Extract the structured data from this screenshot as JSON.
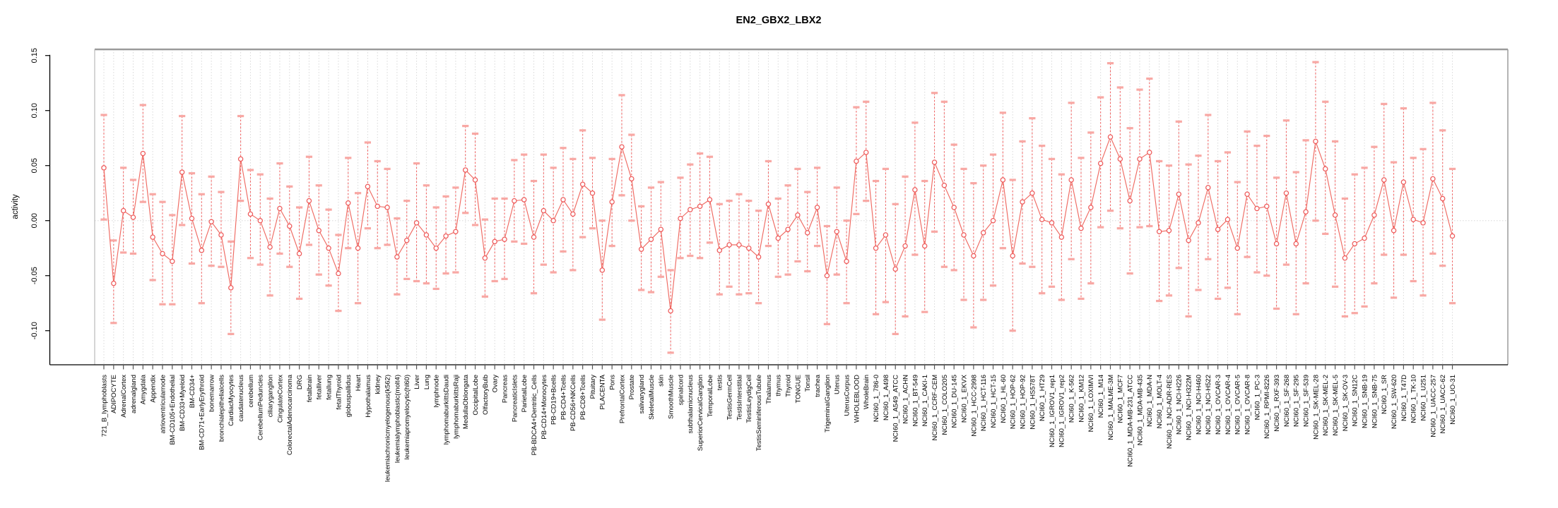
{
  "title": "EN2_GBX2_LBX2",
  "ylabel": "activity",
  "colors": {
    "point": "#ee5a5a",
    "line": "#ef6a62",
    "error_line": "#f25f5f",
    "cap": "#f8a8a4",
    "grid": "#d8d8d8",
    "zero_line": "#d8d8d8",
    "axis": "#000000",
    "box": "#9b9b9b",
    "text": "#000000"
  },
  "chart_data": {
    "type": "scatter",
    "subtype": "error-bar-plot",
    "title": "EN2_GBX2_LBX2",
    "xlabel": "",
    "ylabel": "activity",
    "ylim": [
      -0.132,
      0.156
    ],
    "yticks": [
      0.15,
      0.1,
      0.05,
      0.0,
      -0.05,
      -0.1
    ],
    "ytick_labels": [
      "0.15",
      "0.10",
      "0.05",
      "0.00",
      "-0.05",
      "-0.10"
    ],
    "grid": "dotted vertical line per category; dotted horizontal line at 0",
    "legend_position": "none",
    "categories": [
      "721_B_lymphoblasts",
      "ADIPOCYTE",
      "AdrenalCortex",
      "adrenalgland",
      "Amygdala",
      "Appendix",
      "atrioventricularnode",
      "BM-CD105+Endothelial",
      "BM-CD33+Myeloid",
      "BM-CD34+",
      "BM-CD71+EarlyErythroid",
      "bonemarrow",
      "bronchialepithelialcells",
      "CardiacMyocytes",
      "caudatenucleus",
      "cerebellum",
      "CerebellumPeduncles",
      "ciliaryganglion",
      "CingulateCortex",
      "ColorectalAdenocarcinoma",
      "DRG",
      "fetalbrain",
      "fetalliver",
      "fetallung",
      "fetalThyroid",
      "globuspallidus",
      "Heart",
      "Hypothalamus",
      "kidney",
      "leukemiachronicmyelogenous(k562)",
      "leukemialymphoblastic(molt4)",
      "leukemiapromyelocytic(hl60)",
      "Liver",
      "Lung",
      "lymphnode",
      "lymphomaburkittsDaudi",
      "lymphomaburkittsRaji",
      "MedullaOblongata",
      "OccipitalLobe",
      "OlfactoryBulb",
      "Ovary",
      "Pancreas",
      "PancreaticIslets",
      "ParietalLobe",
      "PB-BDCA4+Dentritic_Cells",
      "PB-CD14+Monocytes",
      "PB-CD19+Bcells",
      "PB-CD4+Tcells",
      "PB-CD56+NKCells",
      "PB-CD8+Tcells",
      "Pituitary",
      "PLACENTA",
      "Pons",
      "PrefrontalCortex",
      "Prostate",
      "salivarygland",
      "SkeletalMuscle",
      "skin",
      "SmoothMuscle",
      "spinalcord",
      "subthalamicnucleus",
      "SuperiorCervicalGanglion",
      "TemporalLobe",
      "testis",
      "TestisGermCell",
      "TestisInterstitial",
      "TestisLeydigCell",
      "TestisSeminiferousTubule",
      "Thalamus",
      "thymus",
      "Thyroid",
      "TONGUE",
      "Tonsil",
      "trachea",
      "TrigeminalGanglion",
      "Uterus",
      "UterusCorpus",
      "WHOLEBLOOD",
      "WholeBrain",
      "NCI60_1_786-0",
      "NCI60_1_A498",
      "NCI60_1_A549_ATCC",
      "NCI60_1_ACHN",
      "NCI60_1_BT-549",
      "NCI60_1_CAKI-1",
      "NCI60_1_CCRF-CEM",
      "NCI60_1_COLO205",
      "NCI60_1_DU-145",
      "NCI60_1_EKVX",
      "NCI60_1_HCC-2998",
      "NCI60_1_HCT-116",
      "NCI60_1_HCT-15",
      "NCI60_1_HL-60",
      "NCI60_1_HOP-62",
      "NCI60_1_HOP-92",
      "NCI60_1_HS578T",
      "NCI60_1_HT29",
      "NCI60_1_IGROV1_rep1",
      "NCI60_1_IGROV1_rep2",
      "NCI60_1_K-562",
      "NCI60_1_KM12",
      "NCI60_1_LOXIMVI",
      "NCI60_1_M14",
      "NCI60_1_MALME-3M",
      "NCI60_1_MCF7",
      "NCI60_1_MDA-MB-231_ATCC",
      "NCI60_1_MDA-MB-435",
      "NCI60_1_MDA-N",
      "NCI60_1_MOLT-4",
      "NCI60_1_NCI-ADR-RES",
      "NCI60_1_NCI-H226",
      "NCI60_1_NCI-H322M",
      "NCI60_1_NCI-H460",
      "NCI60_1_NCI-H522",
      "NCI60_1_OVCAR-3",
      "NCI60_1_OVCAR-4",
      "NCI60_1_OVCAR-5",
      "NCI60_1_OVCAR-8",
      "NCI60_1_PC-3",
      "NCI60_1_RPMI-8226",
      "NCI60_1_RXF-393",
      "NCI60_1_SF-268",
      "NCI60_1_SF-295",
      "NCI60_1_SF-539",
      "NCI60_1_SK-MEL-28",
      "NCI60_1_SK-MEL-2",
      "NCI60_1_SK-MEL-5",
      "NCI60_1_SK-OV-3",
      "NCI60_1_SN12C",
      "NCI60_1_SNB-19",
      "NCI60_1_SNB-75",
      "NCI60_1_SR",
      "NCI60_1_SW-620",
      "NCI60_1_T47D",
      "NCI60_1_TK-10",
      "NCI60_1_U251",
      "NCI60_1_UACC-257",
      "NCI60_1_UACC-62",
      "NCI60_1_UO-31"
    ],
    "series": [
      {
        "name": "activity",
        "values": [
          0.048,
          -0.057,
          0.009,
          0.003,
          0.061,
          -0.015,
          -0.03,
          -0.037,
          0.044,
          0.002,
          -0.027,
          -0.001,
          -0.013,
          -0.061,
          0.056,
          0.006,
          0.0,
          -0.024,
          0.011,
          -0.005,
          -0.03,
          0.018,
          -0.009,
          -0.025,
          -0.048,
          0.016,
          -0.025,
          0.031,
          0.013,
          0.012,
          -0.033,
          -0.018,
          -0.002,
          -0.013,
          -0.025,
          -0.014,
          -0.01,
          0.046,
          0.037,
          -0.034,
          -0.019,
          -0.017,
          0.018,
          0.019,
          -0.015,
          0.009,
          0.0,
          0.019,
          0.006,
          0.033,
          0.025,
          -0.045,
          0.017,
          0.067,
          0.038,
          -0.026,
          -0.017,
          -0.008,
          -0.082,
          0.002,
          0.01,
          0.013,
          0.019,
          -0.027,
          -0.022,
          -0.022,
          -0.025,
          -0.033,
          0.015,
          -0.016,
          -0.008,
          0.005,
          -0.011,
          0.012,
          -0.05,
          -0.01,
          -0.037,
          0.054,
          0.062,
          -0.025,
          -0.013,
          -0.044,
          -0.023,
          0.028,
          -0.023,
          0.053,
          0.032,
          0.012,
          -0.013,
          -0.032,
          -0.011,
          0.0,
          0.037,
          -0.032,
          0.017,
          0.025,
          0.001,
          -0.002,
          -0.015,
          0.037,
          -0.007,
          0.012,
          0.052,
          0.076,
          0.056,
          0.018,
          0.056,
          0.062,
          -0.01,
          -0.009,
          0.024,
          -0.018,
          -0.002,
          0.03,
          -0.008,
          0.001,
          -0.025,
          0.024,
          0.011,
          0.013,
          -0.021,
          0.025,
          -0.021,
          0.008,
          0.072,
          0.047,
          0.005,
          -0.034,
          -0.021,
          -0.016,
          0.005,
          0.037,
          -0.009,
          0.035,
          0.001,
          -0.002,
          0.038,
          0.02,
          -0.014
        ],
        "ci_low": [
          0.001,
          -0.093,
          -0.029,
          -0.03,
          0.017,
          -0.054,
          -0.076,
          -0.076,
          -0.004,
          -0.039,
          -0.075,
          -0.041,
          -0.042,
          -0.103,
          0.018,
          -0.034,
          -0.04,
          -0.068,
          -0.03,
          -0.042,
          -0.071,
          -0.022,
          -0.049,
          -0.059,
          -0.082,
          -0.025,
          -0.075,
          -0.007,
          -0.025,
          -0.022,
          -0.067,
          -0.053,
          -0.055,
          -0.057,
          -0.062,
          -0.048,
          -0.047,
          0.007,
          -0.004,
          -0.069,
          -0.055,
          -0.053,
          -0.019,
          -0.021,
          -0.066,
          -0.04,
          -0.047,
          -0.028,
          -0.045,
          -0.015,
          -0.007,
          -0.09,
          -0.023,
          0.023,
          0.0,
          -0.063,
          -0.065,
          -0.051,
          -0.12,
          -0.034,
          -0.032,
          -0.034,
          -0.02,
          -0.067,
          -0.06,
          -0.067,
          -0.066,
          -0.075,
          -0.023,
          -0.051,
          -0.049,
          -0.037,
          -0.046,
          -0.023,
          -0.094,
          -0.049,
          -0.075,
          0.006,
          0.018,
          -0.085,
          -0.074,
          -0.103,
          -0.087,
          -0.031,
          -0.083,
          -0.01,
          -0.042,
          -0.045,
          -0.072,
          -0.097,
          -0.072,
          -0.059,
          -0.025,
          -0.1,
          -0.039,
          -0.042,
          -0.066,
          -0.06,
          -0.072,
          -0.035,
          -0.071,
          -0.057,
          -0.006,
          0.009,
          -0.007,
          -0.048,
          -0.006,
          -0.005,
          -0.073,
          -0.068,
          -0.043,
          -0.087,
          -0.063,
          -0.035,
          -0.071,
          -0.061,
          -0.085,
          -0.033,
          -0.047,
          -0.05,
          -0.08,
          -0.04,
          -0.085,
          -0.057,
          0.0,
          -0.012,
          -0.06,
          -0.087,
          -0.084,
          -0.078,
          -0.057,
          -0.031,
          -0.07,
          -0.031,
          -0.055,
          -0.068,
          -0.03,
          -0.041,
          -0.075
        ],
        "ci_high": [
          0.096,
          -0.018,
          0.048,
          0.037,
          0.105,
          0.024,
          0.017,
          0.005,
          0.095,
          0.043,
          0.024,
          0.04,
          0.026,
          -0.019,
          0.095,
          0.046,
          0.042,
          0.02,
          0.052,
          0.031,
          0.012,
          0.058,
          0.032,
          0.01,
          -0.013,
          0.057,
          0.025,
          0.071,
          0.054,
          0.047,
          0.002,
          0.018,
          0.052,
          0.032,
          0.012,
          0.022,
          0.03,
          0.086,
          0.079,
          0.001,
          0.02,
          0.02,
          0.055,
          0.06,
          0.036,
          0.06,
          0.048,
          0.066,
          0.056,
          0.082,
          0.057,
          0.0,
          0.056,
          0.114,
          0.078,
          0.013,
          0.03,
          0.035,
          -0.045,
          0.039,
          0.051,
          0.061,
          0.058,
          0.015,
          0.018,
          0.024,
          0.018,
          0.009,
          0.054,
          0.02,
          0.032,
          0.047,
          0.026,
          0.048,
          -0.005,
          0.03,
          0.0,
          0.103,
          0.108,
          0.036,
          0.047,
          0.015,
          0.04,
          0.089,
          0.036,
          0.116,
          0.108,
          0.069,
          0.047,
          0.034,
          0.05,
          0.06,
          0.098,
          0.037,
          0.072,
          0.093,
          0.068,
          0.056,
          0.042,
          0.107,
          0.057,
          0.08,
          0.112,
          0.143,
          0.121,
          0.084,
          0.119,
          0.129,
          0.054,
          0.05,
          0.09,
          0.051,
          0.059,
          0.096,
          0.054,
          0.062,
          0.035,
          0.081,
          0.068,
          0.077,
          0.039,
          0.091,
          0.044,
          0.073,
          0.144,
          0.108,
          0.072,
          0.02,
          0.042,
          0.048,
          0.067,
          0.106,
          0.053,
          0.102,
          0.057,
          0.065,
          0.107,
          0.082,
          0.047
        ]
      }
    ]
  }
}
